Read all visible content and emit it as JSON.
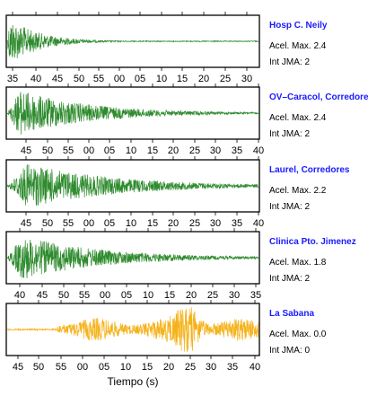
{
  "chart_data": [
    {
      "type": "line",
      "station": "Hosp C. Neily",
      "accel_label": "Acel. Max. 2.4",
      "jma_label": "Int JMA: 2",
      "color": "#2e8b2e",
      "x_ticks": [
        "35",
        "40",
        "45",
        "50",
        "55",
        "00",
        "05",
        "10",
        "15",
        "20",
        "25",
        "30"
      ],
      "x_ticks_fraction_start": 0.0,
      "onset_fraction": 0.0,
      "peak_fraction": 0.01,
      "decay": 0.12,
      "noise": 0.02,
      "amplitude_fraction": 0.95
    },
    {
      "type": "line",
      "station": "OV–Caracol, Corredore",
      "accel_label": "Acel. Max. 2.4",
      "jma_label": "Int JMA: 2",
      "color": "#2e8b2e",
      "x_ticks": [
        "45",
        "50",
        "55",
        "00",
        "05",
        "10",
        "15",
        "20",
        "25",
        "30",
        "35",
        "40"
      ],
      "onset_fraction": 0.0,
      "peak_fraction": 0.05,
      "decay": 0.28,
      "noise": 0.03,
      "amplitude_fraction": 0.95
    },
    {
      "type": "line",
      "station": "Laurel, Corredores",
      "accel_label": "Acel. Max. 2.2",
      "jma_label": "Int JMA: 2",
      "color": "#2e8b2e",
      "x_ticks": [
        "45",
        "50",
        "55",
        "00",
        "05",
        "10",
        "15",
        "20",
        "25",
        "30",
        "35",
        "40"
      ],
      "onset_fraction": 0.0,
      "peak_fraction": 0.08,
      "decay": 0.35,
      "noise": 0.04,
      "amplitude_fraction": 0.92
    },
    {
      "type": "line",
      "station": "Clinica Pto. Jimenez",
      "accel_label": "Acel. Max. 1.8",
      "jma_label": "Int JMA: 2",
      "color": "#2e8b2e",
      "x_ticks": [
        "40",
        "45",
        "50",
        "55",
        "00",
        "05",
        "10",
        "15",
        "20",
        "25",
        "30",
        "35"
      ],
      "onset_fraction": 0.0,
      "peak_fraction": 0.06,
      "decay": 0.32,
      "noise": 0.04,
      "amplitude_fraction": 0.9
    },
    {
      "type": "line",
      "station": "La Sabana",
      "accel_label": "Acel. Max. 0.0",
      "jma_label": "Int JMA: 0",
      "color": "#f5b21a",
      "x_ticks": [
        "45",
        "50",
        "55",
        "00",
        "05",
        "10",
        "15",
        "20",
        "25",
        "30",
        "35",
        "40"
      ],
      "xlabel": "Tiempo (s)",
      "onset_fraction": 0.2,
      "peak_fraction": 0.72,
      "decay": 0.0,
      "noise": 0.1,
      "amplitude_fraction": 0.95
    }
  ]
}
